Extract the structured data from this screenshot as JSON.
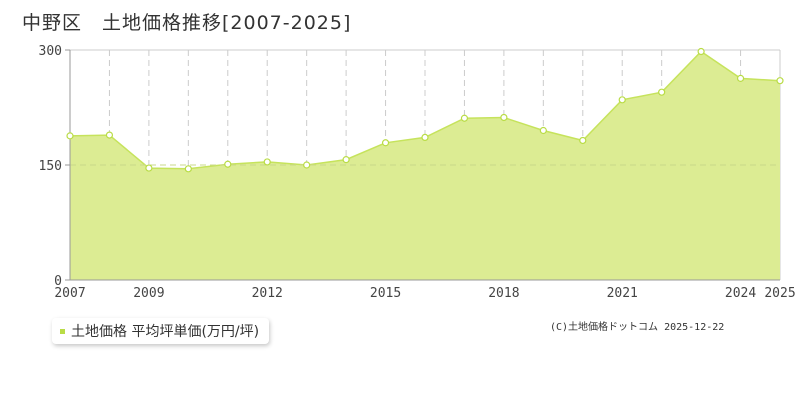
{
  "title": "中野区　土地価格推移[2007-2025]",
  "legend": {
    "label": "土地価格 平均坪単価(万円/坪)"
  },
  "credit": "(C)土地価格ドットコム 2025-12-22",
  "colors": {
    "line": "#c6e35c",
    "fill": "#dcec93",
    "dot_stroke": "#b9dc46",
    "grid": "#cccccc",
    "axis": "#999999"
  },
  "chart_data": {
    "type": "area",
    "x": [
      2007,
      2008,
      2009,
      2010,
      2011,
      2012,
      2013,
      2014,
      2015,
      2016,
      2017,
      2018,
      2019,
      2020,
      2021,
      2022,
      2023,
      2024,
      2025
    ],
    "series": [
      {
        "name": "土地価格 平均坪単価(万円/坪)",
        "values": [
          188,
          189,
          146,
          145,
          151,
          154,
          150,
          157,
          179,
          186,
          211,
          212,
          195,
          182,
          235,
          245,
          298,
          263,
          260
        ]
      }
    ],
    "y_ticks": [
      0,
      150,
      300
    ],
    "x_tick_labels": [
      "2007",
      "2009",
      "2012",
      "2015",
      "2018",
      "2021",
      "2024",
      "2025"
    ],
    "xlim": [
      2007,
      2025
    ],
    "ylim": [
      0,
      300
    ],
    "grid": true,
    "legend_position": "bottom-left"
  }
}
